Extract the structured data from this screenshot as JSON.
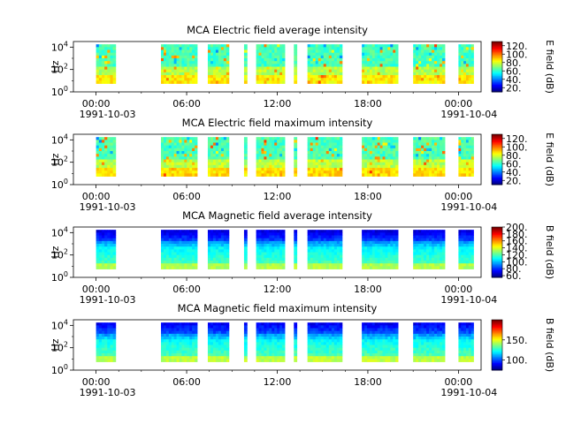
{
  "time_axis": {
    "tick_labels": [
      "00:00",
      "06:00",
      "12:00",
      "18:00",
      "00:00"
    ],
    "tick_hours": [
      0,
      6,
      12,
      18,
      24
    ],
    "minor_tick_hours": [
      1.5,
      3,
      4.5,
      7.5,
      9,
      10.5,
      13.5,
      15,
      16.5,
      19.5,
      21,
      22.5
    ],
    "start_date": "1991-10-03",
    "end_date": "1991-10-04",
    "range_hours": [
      -1.5,
      25.5
    ]
  },
  "colors": {
    "jet": [
      "#00007f",
      "#0000ff",
      "#007fff",
      "#00ffff",
      "#7fff7f",
      "#ffff00",
      "#ff7f00",
      "#ff0000",
      "#7f0000"
    ]
  },
  "chart_data": [
    {
      "type": "heatmap",
      "title": "MCA  Electric field average intensity",
      "ylabel": "Hz",
      "y_scale": "log",
      "y_tick_labels": [
        "10",
        "10",
        "10"
      ],
      "y_tick_exponents": [
        "0",
        "2",
        "4"
      ],
      "y_tick_values": [
        1,
        100,
        10000
      ],
      "frequency_range_hz": [
        5.6,
        17800
      ],
      "colorbar": {
        "label": "E field (dB)",
        "range": [
          10,
          130
        ],
        "tick_values": [
          20,
          40,
          60,
          80,
          100,
          120
        ],
        "tick_labels": [
          "20.",
          "40.",
          "60.",
          "80.",
          "100.",
          "120."
        ]
      },
      "data_intervals_hours": [
        [
          0.0,
          1.3
        ],
        [
          4.3,
          6.7
        ],
        [
          7.4,
          8.8
        ],
        [
          9.8,
          10.0
        ],
        [
          10.6,
          12.5
        ],
        [
          13.1,
          13.3
        ],
        [
          14.0,
          16.3
        ],
        [
          17.6,
          20.0
        ],
        [
          21.0,
          23.1
        ],
        [
          24.0,
          25.0
        ]
      ]
    },
    {
      "type": "heatmap",
      "title": "MCA  Electric field maximum intensity",
      "ylabel": "Hz",
      "y_scale": "log",
      "y_tick_labels": [
        "10",
        "10",
        "10"
      ],
      "y_tick_exponents": [
        "0",
        "2",
        "4"
      ],
      "y_tick_values": [
        1,
        100,
        10000
      ],
      "frequency_range_hz": [
        5.6,
        17800
      ],
      "colorbar": {
        "label": "E field (dB)",
        "range": [
          10,
          130
        ],
        "tick_values": [
          20,
          40,
          60,
          80,
          100,
          120
        ],
        "tick_labels": [
          "20.",
          "40.",
          "60.",
          "80.",
          "100.",
          "120."
        ]
      },
      "data_intervals_hours": [
        [
          0.0,
          1.3
        ],
        [
          4.3,
          6.7
        ],
        [
          7.4,
          8.8
        ],
        [
          9.8,
          10.0
        ],
        [
          10.6,
          12.5
        ],
        [
          13.1,
          13.3
        ],
        [
          14.0,
          16.3
        ],
        [
          17.6,
          20.0
        ],
        [
          21.0,
          23.1
        ],
        [
          24.0,
          25.0
        ]
      ]
    },
    {
      "type": "heatmap",
      "title": "MCA  Magnetic field average intensity",
      "ylabel": "Hz",
      "y_scale": "log",
      "y_tick_labels": [
        "10",
        "10",
        "10"
      ],
      "y_tick_exponents": [
        "0",
        "2",
        "4"
      ],
      "y_tick_values": [
        1,
        100,
        10000
      ],
      "frequency_range_hz": [
        5.6,
        17800
      ],
      "colorbar": {
        "label": "B field (dB)",
        "range": [
          55,
          200
        ],
        "tick_values": [
          60,
          80,
          100,
          120,
          140,
          160,
          180,
          200
        ],
        "tick_labels": [
          "60.",
          "80.",
          "100.",
          "120.",
          "140.",
          "160.",
          "180.",
          "200."
        ]
      },
      "data_intervals_hours": [
        [
          0.0,
          1.3
        ],
        [
          4.3,
          6.7
        ],
        [
          7.4,
          8.8
        ],
        [
          9.8,
          10.0
        ],
        [
          10.6,
          12.5
        ],
        [
          13.1,
          13.3
        ],
        [
          14.0,
          16.3
        ],
        [
          17.6,
          20.0
        ],
        [
          21.0,
          23.1
        ],
        [
          24.0,
          25.0
        ]
      ]
    },
    {
      "type": "heatmap",
      "title": "MCA  Magnetic field maximum intensity",
      "ylabel": "Hz",
      "y_scale": "log",
      "y_tick_labels": [
        "10",
        "10",
        "10"
      ],
      "y_tick_exponents": [
        "0",
        "2",
        "4"
      ],
      "y_tick_values": [
        1,
        100,
        10000
      ],
      "frequency_range_hz": [
        5.6,
        17800
      ],
      "colorbar": {
        "label": "B field (dB)",
        "range": [
          75,
          200
        ],
        "tick_values": [
          100,
          150
        ],
        "tick_labels": [
          "100.",
          "150."
        ]
      },
      "data_intervals_hours": [
        [
          0.0,
          1.3
        ],
        [
          4.3,
          6.7
        ],
        [
          7.4,
          8.8
        ],
        [
          9.8,
          10.0
        ],
        [
          10.6,
          12.5
        ],
        [
          13.1,
          13.3
        ],
        [
          14.0,
          16.3
        ],
        [
          17.6,
          20.0
        ],
        [
          21.0,
          23.1
        ],
        [
          24.0,
          25.0
        ]
      ]
    }
  ]
}
